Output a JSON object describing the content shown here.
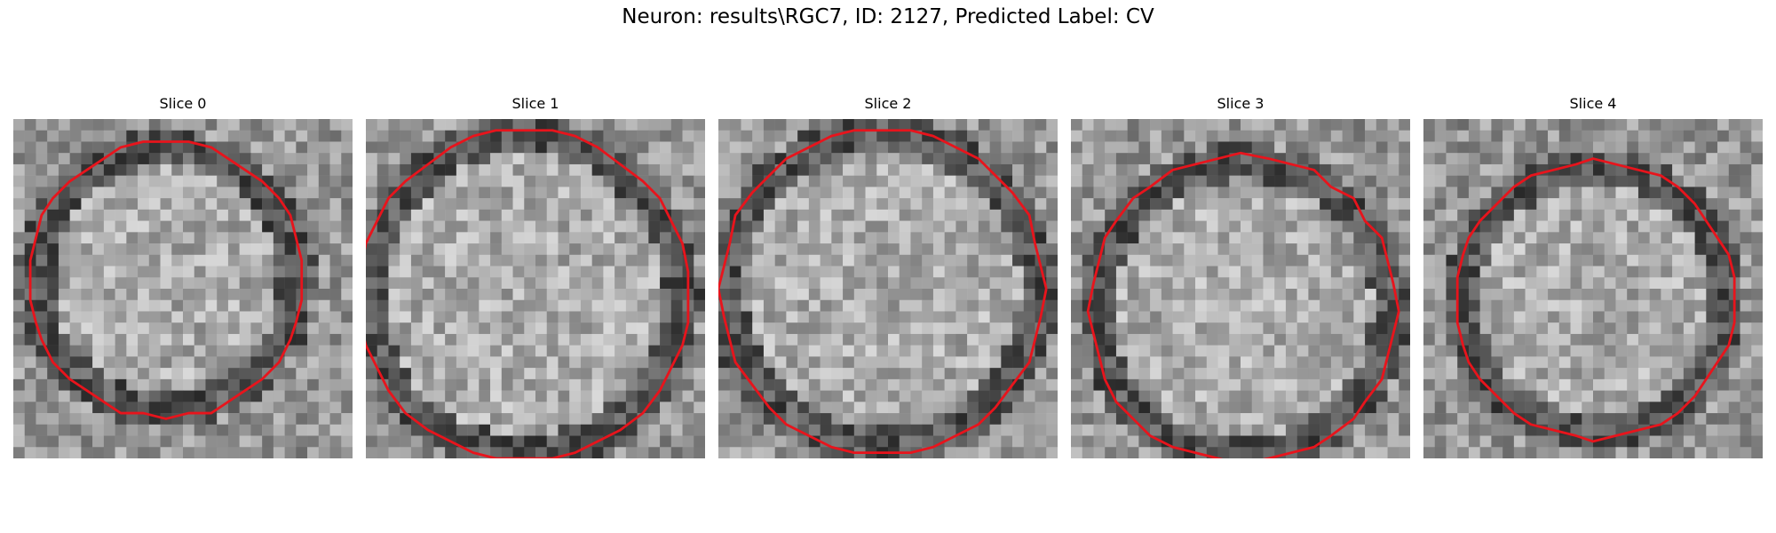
{
  "figure": {
    "title": "Neuron: results\\RGC7, ID: 2127, Predicted Label: CV",
    "contour_color": "#e8141c"
  },
  "slices": [
    {
      "label": "Slice 0"
    },
    {
      "label": "Slice 1"
    },
    {
      "label": "Slice 2"
    },
    {
      "label": "Slice 3"
    },
    {
      "label": "Slice 4"
    }
  ]
}
